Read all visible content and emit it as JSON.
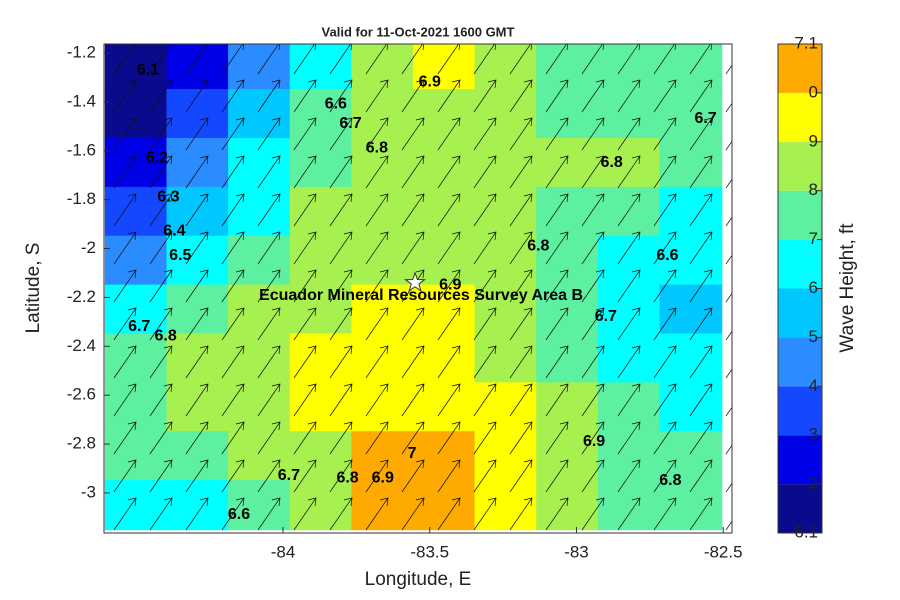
{
  "chart_data": {
    "type": "contour",
    "title": "Valid for 11-Oct-2021 1600 GMT",
    "x_label": "Longitude, E",
    "y_label": "Latitude, S",
    "colorbar_label": "Wave Height, ft",
    "xlim": [
      -84.61,
      -82.47
    ],
    "ylim": [
      -3.164,
      -1.163
    ],
    "xticks": [
      -84,
      -83.5,
      -83,
      -82.5
    ],
    "yticks": [
      -1.2,
      -1.4,
      -1.6,
      -1.8,
      -2,
      -2.2,
      -2.4,
      -2.6,
      -2.8,
      -3
    ],
    "clim": [
      6.1,
      7.1
    ],
    "cticks": [
      6.1,
      {
        "value": 6.2,
        "label": "2"
      },
      {
        "value": 6.3,
        "label": "3"
      },
      {
        "value": 6.4,
        "label": "4"
      },
      {
        "value": 6.5,
        "label": "5"
      },
      {
        "value": 6.6,
        "label": "6"
      },
      {
        "value": 6.7,
        "label": "7"
      },
      {
        "value": 6.8,
        "label": "8"
      },
      {
        "value": 6.9,
        "label": "9"
      },
      {
        "value": 7.0,
        "label": "0"
      },
      7.1
    ],
    "colors": [
      "#0a0a8c",
      "#0000e6",
      "#1448ff",
      "#2a8cff",
      "#00c8ff",
      "#00ffff",
      "#5cf0a0",
      "#a6f050",
      "#ffff00",
      "#ffaa00",
      "#ff5a00"
    ],
    "lon": [
      -84.5,
      -84.29,
      -84.08,
      -83.87,
      -83.66,
      -83.45,
      -83.24,
      -83.03,
      -82.82,
      -82.61
    ],
    "lat": [
      -1.25,
      -1.45,
      -1.65,
      -1.85,
      -2.05,
      -2.25,
      -2.45,
      -2.65,
      -2.85,
      -3.05
    ],
    "z": [
      [
        6.1,
        6.2,
        6.45,
        6.65,
        6.8,
        6.9,
        6.8,
        6.75,
        6.7,
        6.7
      ],
      [
        6.15,
        6.3,
        6.55,
        6.7,
        6.85,
        6.85,
        6.8,
        6.75,
        6.7,
        6.7
      ],
      [
        6.2,
        6.4,
        6.6,
        6.75,
        6.85,
        6.85,
        6.8,
        6.8,
        6.85,
        6.7
      ],
      [
        6.3,
        6.5,
        6.65,
        6.8,
        6.85,
        6.85,
        6.85,
        6.75,
        6.75,
        6.65
      ],
      [
        6.45,
        6.6,
        6.75,
        6.85,
        6.85,
        6.85,
        6.8,
        6.75,
        6.65,
        6.6
      ],
      [
        6.65,
        6.75,
        6.8,
        6.85,
        6.95,
        6.95,
        6.8,
        6.7,
        6.6,
        6.55
      ],
      [
        6.75,
        6.85,
        6.85,
        6.9,
        6.95,
        6.95,
        6.85,
        6.75,
        6.65,
        6.6
      ],
      [
        6.75,
        6.85,
        6.85,
        6.9,
        6.95,
        6.95,
        6.9,
        6.8,
        6.7,
        6.65
      ],
      [
        6.7,
        6.75,
        6.8,
        6.85,
        7.05,
        7.05,
        6.95,
        6.85,
        6.75,
        6.7
      ],
      [
        6.65,
        6.65,
        6.7,
        6.85,
        7.05,
        7.05,
        6.95,
        6.85,
        6.75,
        6.7
      ]
    ],
    "contour_labels": [
      {
        "value": 6.1,
        "x": -84.46,
        "y": -1.27
      },
      {
        "value": 6.2,
        "x": -84.43,
        "y": -1.63
      },
      {
        "value": 6.3,
        "x": -84.39,
        "y": -1.79
      },
      {
        "value": 6.4,
        "x": -84.37,
        "y": -1.93
      },
      {
        "value": 6.5,
        "x": -84.35,
        "y": -2.03
      },
      {
        "value": 6.7,
        "x": -84.49,
        "y": -2.32
      },
      {
        "value": 6.8,
        "x": -84.4,
        "y": -2.36
      },
      {
        "value": 6.6,
        "x": -83.82,
        "y": -1.41
      },
      {
        "value": 6.7,
        "x": -83.77,
        "y": -1.49
      },
      {
        "value": 6.8,
        "x": -83.68,
        "y": -1.59
      },
      {
        "value": 6.9,
        "x": -83.5,
        "y": -1.32
      },
      {
        "value": 6.8,
        "x": -82.88,
        "y": -1.65
      },
      {
        "value": 6.7,
        "x": -82.56,
        "y": -1.47
      },
      {
        "value": 6.8,
        "x": -83.13,
        "y": -1.99
      },
      {
        "value": 6.6,
        "x": -82.69,
        "y": -2.03
      },
      {
        "value": 6.9,
        "x": -83.43,
        "y": -2.15
      },
      {
        "value": 6.7,
        "x": -82.9,
        "y": -2.28
      },
      {
        "value": 7,
        "x": -83.56,
        "y": -2.84
      },
      {
        "value": 6.9,
        "x": -82.94,
        "y": -2.79
      },
      {
        "value": 6.8,
        "x": -82.68,
        "y": -2.95
      },
      {
        "value": 6.7,
        "x": -83.98,
        "y": -2.93
      },
      {
        "value": 6.8,
        "x": -83.78,
        "y": -2.94
      },
      {
        "value": 6.9,
        "x": -83.66,
        "y": -2.94
      },
      {
        "value": 6.6,
        "x": -84.15,
        "y": -3.09
      }
    ],
    "site": {
      "label": "Ecuador Mineral Resources Survey Area B",
      "x": -83.55,
      "y": -2.14
    }
  }
}
